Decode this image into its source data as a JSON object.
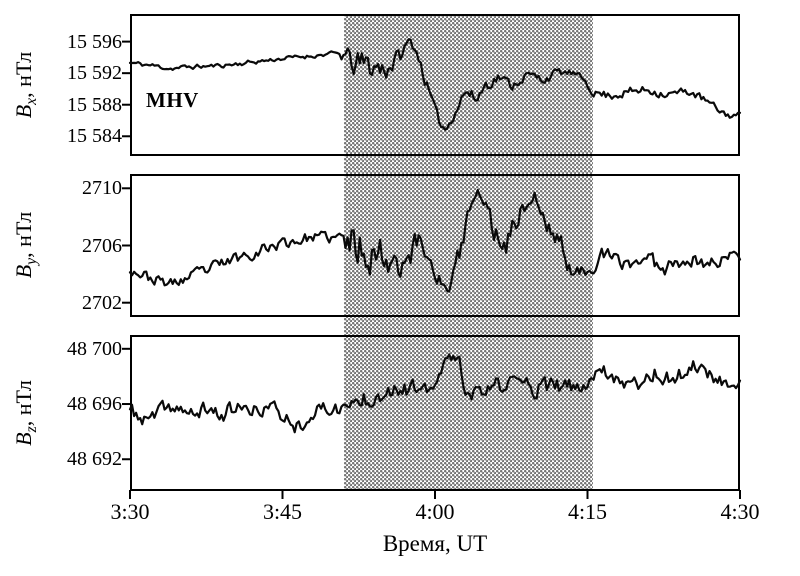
{
  "figure": {
    "station_label": "MHV",
    "xlabel": "Время, UT"
  },
  "chart_data": {
    "type": "line",
    "title": "",
    "xlabel": "Время, UT",
    "x_unit": "minutes after 3:30 UT",
    "x_range": [
      0,
      60
    ],
    "x_ticks": [
      0,
      15,
      30,
      45,
      60
    ],
    "x_ticklabels": [
      "3:30",
      "3:45",
      "4:00",
      "4:15",
      "4:30"
    ],
    "annotation": "MHV",
    "shaded_region": {
      "x_start": 21,
      "x_end": 45.5,
      "style": "gray dotted hatch spanning all three panels"
    },
    "points_format": "[minutes_after_3:30_UT, value_nTl, local_noise_amplitude_nTl]",
    "panels": [
      {
        "name": "Bx",
        "ylabel": {
          "symbol": "B",
          "subscript": "x",
          "unit": ", нТл"
        },
        "ylim": [
          15581.5,
          15599.5
        ],
        "yticks": [
          15596,
          15592,
          15588,
          15584
        ],
        "ytick_labels": [
          "15 596",
          "15 592",
          "15 588",
          "15 584"
        ],
        "points": [
          [
            0,
            15593.3,
            0.35
          ],
          [
            2,
            15593.0,
            0.35
          ],
          [
            4,
            15592.6,
            0.35
          ],
          [
            6,
            15592.8,
            0.35
          ],
          [
            8,
            15592.9,
            0.3
          ],
          [
            10,
            15593.1,
            0.35
          ],
          [
            12,
            15593.4,
            0.35
          ],
          [
            14,
            15593.7,
            0.3
          ],
          [
            16,
            15594.0,
            0.3
          ],
          [
            18,
            15594.2,
            0.3
          ],
          [
            20,
            15594.5,
            0.3
          ],
          [
            21,
            15594.3,
            1.2
          ],
          [
            22,
            15593.2,
            2.0
          ],
          [
            23.5,
            15593.0,
            2.2
          ],
          [
            25,
            15592.6,
            2.0
          ],
          [
            26.5,
            15594.0,
            1.3
          ],
          [
            27.5,
            15596.2,
            0.6
          ],
          [
            28.3,
            15594.5,
            0.9
          ],
          [
            29.3,
            15590.0,
            1.0
          ],
          [
            30.3,
            15586.0,
            0.8
          ],
          [
            31.1,
            15584.8,
            0.5
          ],
          [
            32,
            15587.3,
            0.9
          ],
          [
            33,
            15589.8,
            1.1
          ],
          [
            34,
            15588.6,
            1.0
          ],
          [
            35,
            15590.6,
            1.0
          ],
          [
            36.3,
            15591.6,
            0.8
          ],
          [
            37.5,
            15590.4,
            0.8
          ],
          [
            39,
            15591.8,
            0.7
          ],
          [
            40.5,
            15591.2,
            0.8
          ],
          [
            42,
            15592.1,
            0.6
          ],
          [
            43.5,
            15592.0,
            0.5
          ],
          [
            44.8,
            15591.0,
            0.5
          ],
          [
            45.5,
            15589.6,
            0.5
          ],
          [
            47,
            15589.2,
            0.7
          ],
          [
            49,
            15589.6,
            0.7
          ],
          [
            51,
            15589.9,
            0.7
          ],
          [
            53,
            15589.3,
            0.7
          ],
          [
            55,
            15589.7,
            0.6
          ],
          [
            56.5,
            15588.6,
            0.6
          ],
          [
            58,
            15587.2,
            0.5
          ],
          [
            59,
            15586.6,
            0.5
          ],
          [
            60,
            15586.7,
            0.4
          ]
        ]
      },
      {
        "name": "By",
        "ylabel": {
          "symbol": "B",
          "subscript": "y",
          "unit": ", нТл"
        },
        "ylim": [
          2701,
          2711
        ],
        "yticks": [
          2710,
          2706,
          2702
        ],
        "ytick_labels": [
          "2710",
          "2706",
          "2702"
        ],
        "points": [
          [
            0,
            2704.4,
            0.45
          ],
          [
            2,
            2703.7,
            0.45
          ],
          [
            4,
            2703.3,
            0.45
          ],
          [
            6,
            2703.8,
            0.5
          ],
          [
            8,
            2704.4,
            0.5
          ],
          [
            10,
            2705.0,
            0.5
          ],
          [
            12,
            2705.5,
            0.5
          ],
          [
            14,
            2706.0,
            0.5
          ],
          [
            16,
            2706.3,
            0.5
          ],
          [
            18,
            2706.6,
            0.45
          ],
          [
            20,
            2706.5,
            0.45
          ],
          [
            21,
            2706.3,
            1.4
          ],
          [
            22.5,
            2706.0,
            1.8
          ],
          [
            24,
            2705.6,
            1.6
          ],
          [
            25.5,
            2705.2,
            1.5
          ],
          [
            27,
            2705.1,
            1.4
          ],
          [
            28.5,
            2706.3,
            1.2
          ],
          [
            30,
            2704.5,
            1.0
          ],
          [
            31.2,
            2702.5,
            0.5
          ],
          [
            32.3,
            2705.0,
            1.0
          ],
          [
            33.5,
            2708.8,
            0.9
          ],
          [
            34.7,
            2709.7,
            0.6
          ],
          [
            35.7,
            2707.0,
            1.0
          ],
          [
            37,
            2706.3,
            1.0
          ],
          [
            38.5,
            2708.5,
            0.9
          ],
          [
            39.8,
            2709.5,
            0.6
          ],
          [
            41,
            2707.2,
            0.9
          ],
          [
            42.3,
            2706.4,
            0.8
          ],
          [
            43.5,
            2703.8,
            0.6
          ],
          [
            45,
            2704.4,
            0.6
          ],
          [
            46.5,
            2705.3,
            0.7
          ],
          [
            48.5,
            2704.7,
            0.7
          ],
          [
            50.5,
            2705.1,
            0.7
          ],
          [
            52.5,
            2704.5,
            0.7
          ],
          [
            54.5,
            2705.2,
            0.65
          ],
          [
            56.5,
            2704.7,
            0.6
          ],
          [
            58.5,
            2705.1,
            0.55
          ],
          [
            60,
            2705.4,
            0.5
          ]
        ]
      },
      {
        "name": "Bz",
        "ylabel": {
          "symbol": "B",
          "subscript": "z",
          "unit": ", нТл"
        },
        "ylim": [
          48689.7,
          48701.0
        ],
        "yticks": [
          48700,
          48696,
          48692
        ],
        "ytick_labels": [
          "48 700",
          "48 696",
          "48 692"
        ],
        "points": [
          [
            0,
            48695.6,
            0.6
          ],
          [
            1.5,
            48694.7,
            0.7
          ],
          [
            3,
            48695.4,
            0.7
          ],
          [
            4.5,
            48695.9,
            0.65
          ],
          [
            6,
            48695.1,
            0.7
          ],
          [
            7.5,
            48695.7,
            0.65
          ],
          [
            9,
            48695.2,
            0.7
          ],
          [
            10.5,
            48695.8,
            0.65
          ],
          [
            12,
            48695.3,
            0.7
          ],
          [
            13.5,
            48695.9,
            0.65
          ],
          [
            15,
            48695.2,
            0.75
          ],
          [
            16.5,
            48694.4,
            0.65
          ],
          [
            18,
            48695.4,
            0.65
          ],
          [
            19.5,
            48695.7,
            0.6
          ],
          [
            21,
            48695.7,
            0.8
          ],
          [
            23,
            48696.4,
            0.9
          ],
          [
            25,
            48697.1,
            0.9
          ],
          [
            27,
            48697.4,
            0.9
          ],
          [
            28.8,
            48696.6,
            0.8
          ],
          [
            30.3,
            48697.6,
            0.8
          ],
          [
            31.4,
            48699.8,
            0.5
          ],
          [
            32.4,
            48698.6,
            0.8
          ],
          [
            33.4,
            48696.4,
            0.6
          ],
          [
            34.8,
            48696.9,
            0.8
          ],
          [
            36.5,
            48697.3,
            0.85
          ],
          [
            38.5,
            48697.6,
            0.85
          ],
          [
            40.5,
            48697.1,
            0.8
          ],
          [
            42.5,
            48697.3,
            0.75
          ],
          [
            44.5,
            48697.0,
            0.65
          ],
          [
            46,
            48698.7,
            0.6
          ],
          [
            47.5,
            48698.1,
            0.7
          ],
          [
            49.5,
            48697.4,
            0.75
          ],
          [
            51.5,
            48698.3,
            0.7
          ],
          [
            53.5,
            48697.7,
            0.7
          ],
          [
            55.5,
            48698.9,
            0.6
          ],
          [
            57.5,
            48697.9,
            0.6
          ],
          [
            59,
            48697.5,
            0.55
          ],
          [
            60,
            48697.4,
            0.5
          ]
        ]
      }
    ]
  }
}
